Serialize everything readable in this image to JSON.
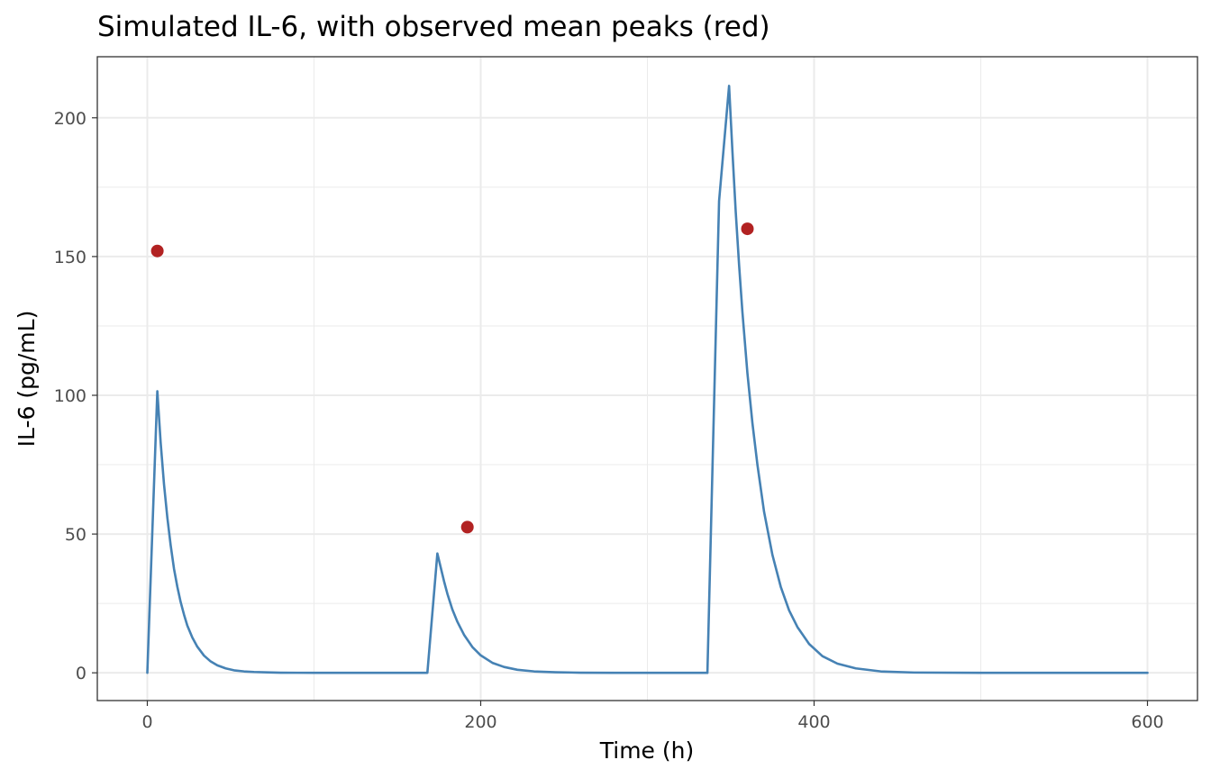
{
  "chart_data": {
    "type": "line",
    "title": "Simulated IL-6, with observed mean peaks (red)",
    "xlabel": "Time (h)",
    "ylabel": "IL-6 (pg/mL)",
    "xlim": [
      -30,
      630
    ],
    "ylim": [
      -10,
      222
    ],
    "x_ticks": [
      0,
      200,
      400,
      600
    ],
    "y_ticks": [
      0,
      50,
      100,
      150,
      200
    ],
    "x_tick_labels": [
      "0",
      "200",
      "400",
      "600"
    ],
    "y_tick_labels": [
      "0",
      "50",
      "100",
      "150",
      "200"
    ],
    "x_minor_ticks": [
      100,
      300,
      500
    ],
    "y_minor_ticks": [
      25,
      75,
      125,
      175
    ],
    "grid": true,
    "legend": "none",
    "series": [
      {
        "color": "#4682b4",
        "x": [
          0,
          6,
          8,
          10,
          12,
          14,
          16,
          18,
          20,
          22,
          24,
          27,
          30,
          34,
          38,
          42,
          47,
          52,
          58,
          64,
          72,
          80,
          90,
          100,
          120,
          140,
          168,
          174,
          176,
          178,
          180,
          183,
          186,
          190,
          195,
          200,
          207,
          214,
          222,
          232,
          245,
          260,
          280,
          310,
          336,
          343,
          349,
          351,
          353,
          355,
          357,
          360,
          363,
          366,
          370,
          375,
          380,
          385,
          390,
          397,
          405,
          414,
          425,
          440,
          460,
          500,
          550,
          600
        ],
        "y": [
          0,
          101.5,
          83,
          68,
          56,
          46,
          37.5,
          31,
          25.5,
          21,
          17,
          12.7,
          9.4,
          6.2,
          4.1,
          2.7,
          1.6,
          0.9,
          0.5,
          0.3,
          0.15,
          0.05,
          0.02,
          0,
          0,
          0,
          0,
          43,
          38,
          33,
          28.5,
          22.8,
          18.4,
          13.7,
          9.3,
          6.3,
          3.6,
          2.1,
          1.1,
          0.5,
          0.2,
          0.05,
          0,
          0,
          0,
          170,
          211.5,
          188,
          166,
          147,
          130,
          108,
          90,
          75,
          58,
          42.5,
          31,
          22.5,
          16.5,
          10.4,
          6,
          3.3,
          1.6,
          0.5,
          0.1,
          0,
          0,
          0
        ]
      },
      {
        "color": "#b22222",
        "points": [
          {
            "x": 6,
            "y": 152
          },
          {
            "x": 192,
            "y": 52.5
          },
          {
            "x": 360,
            "y": 160
          }
        ]
      }
    ]
  }
}
